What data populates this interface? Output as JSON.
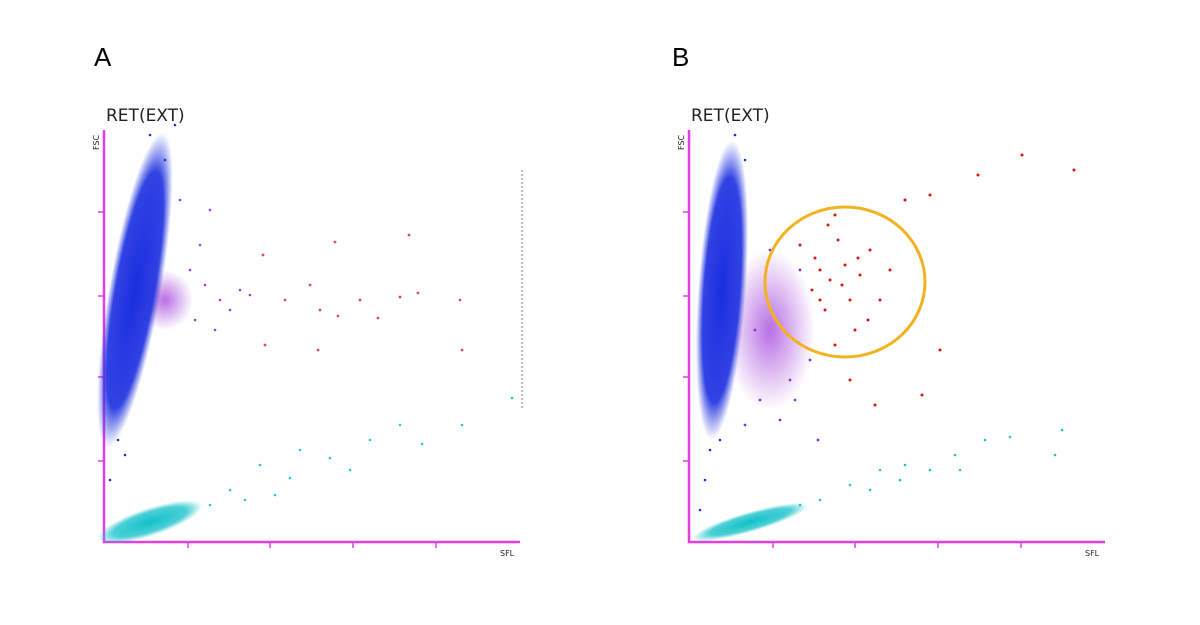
{
  "panels": [
    {
      "label": "A",
      "title": "RET(EXT)",
      "y_label": "FSC",
      "x_label": "SFL"
    },
    {
      "label": "B",
      "title": "RET(EXT)",
      "y_label": "FSC",
      "x_label": "SFL"
    }
  ]
}
